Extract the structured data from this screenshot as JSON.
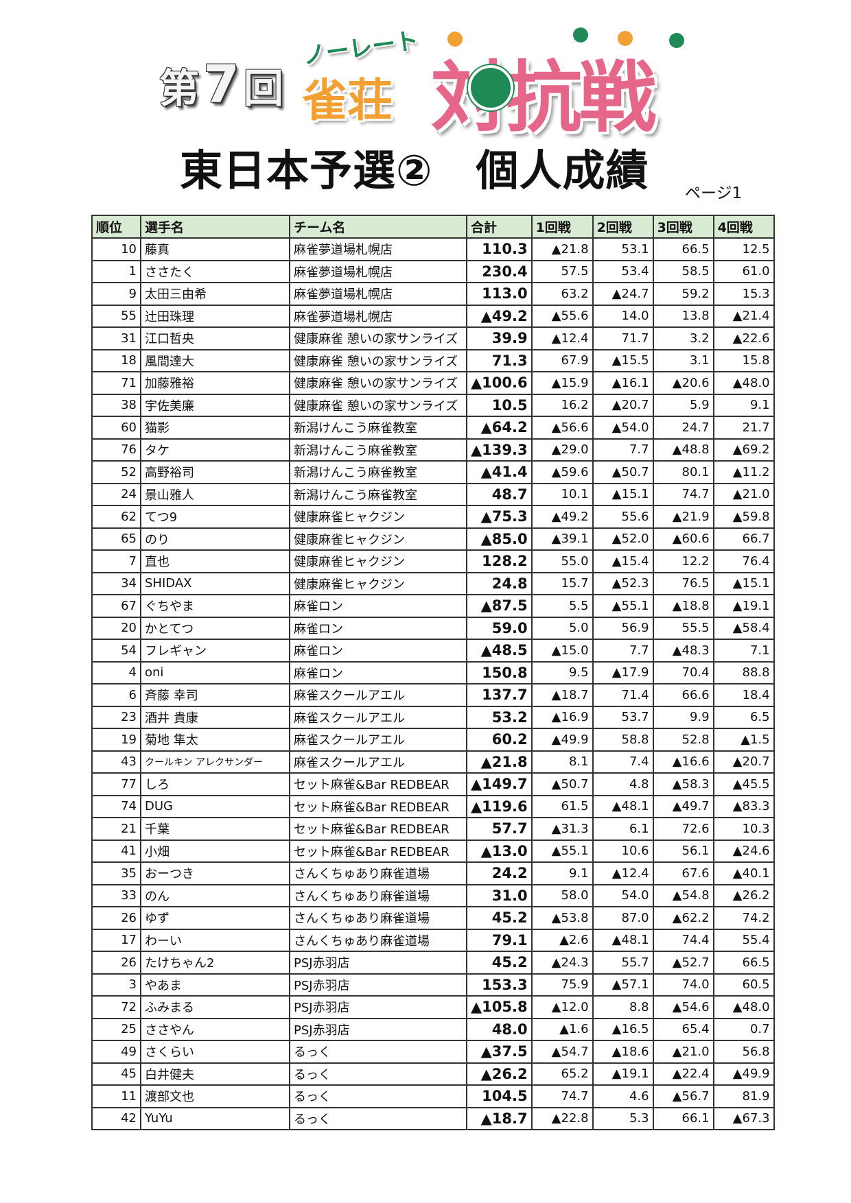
{
  "logo": {
    "edition_prefix": "第",
    "edition_number": "7",
    "edition_suffix": "回",
    "brand_line1": "ノーレート",
    "brand_line2": "雀荘",
    "brand_main": "対抗戦",
    "colors": {
      "green": "#1f8a55",
      "orange": "#f2a033",
      "pink": "#e6668a"
    }
  },
  "title": "東日本予選②　個人成績",
  "page_label": "ページ1",
  "table": {
    "headers": [
      "順位",
      "選手名",
      "チーム名",
      "合計",
      "1回戦",
      "2回戦",
      "3回戦",
      "4回戦"
    ],
    "header_bg": "#d9ead3",
    "rows": [
      [
        "10",
        "藤真",
        "麻雀夢道場札幌店",
        "110.3",
        "▲21.8",
        "53.1",
        "66.5",
        "12.5"
      ],
      [
        "1",
        "ささたく",
        "麻雀夢道場札幌店",
        "230.4",
        "57.5",
        "53.4",
        "58.5",
        "61.0"
      ],
      [
        "9",
        "太田三由希",
        "麻雀夢道場札幌店",
        "113.0",
        "63.2",
        "▲24.7",
        "59.2",
        "15.3"
      ],
      [
        "55",
        "辻田珠理",
        "麻雀夢道場札幌店",
        "▲49.2",
        "▲55.6",
        "14.0",
        "13.8",
        "▲21.4"
      ],
      [
        "31",
        "江口哲央",
        "健康麻雀 憩いの家サンライズ",
        "39.9",
        "▲12.4",
        "71.7",
        "3.2",
        "▲22.6"
      ],
      [
        "18",
        "風間達大",
        "健康麻雀 憩いの家サンライズ",
        "71.3",
        "67.9",
        "▲15.5",
        "3.1",
        "15.8"
      ],
      [
        "71",
        "加藤雅裕",
        "健康麻雀 憩いの家サンライズ",
        "▲100.6",
        "▲15.9",
        "▲16.1",
        "▲20.6",
        "▲48.0"
      ],
      [
        "38",
        "宇佐美廉",
        "健康麻雀 憩いの家サンライズ",
        "10.5",
        "16.2",
        "▲20.7",
        "5.9",
        "9.1"
      ],
      [
        "60",
        "猫影",
        "新潟けんこう麻雀教室",
        "▲64.2",
        "▲56.6",
        "▲54.0",
        "24.7",
        "21.7"
      ],
      [
        "76",
        "タケ",
        "新潟けんこう麻雀教室",
        "▲139.3",
        "▲29.0",
        "7.7",
        "▲48.8",
        "▲69.2"
      ],
      [
        "52",
        "高野裕司",
        "新潟けんこう麻雀教室",
        "▲41.4",
        "▲59.6",
        "▲50.7",
        "80.1",
        "▲11.2"
      ],
      [
        "24",
        "景山雅人",
        "新潟けんこう麻雀教室",
        "48.7",
        "10.1",
        "▲15.1",
        "74.7",
        "▲21.0"
      ],
      [
        "62",
        "てつ9",
        "健康麻雀ヒャクジン",
        "▲75.3",
        "▲49.2",
        "55.6",
        "▲21.9",
        "▲59.8"
      ],
      [
        "65",
        "のり",
        "健康麻雀ヒャクジン",
        "▲85.0",
        "▲39.1",
        "▲52.0",
        "▲60.6",
        "66.7"
      ],
      [
        "7",
        "直也",
        "健康麻雀ヒャクジン",
        "128.2",
        "55.0",
        "▲15.4",
        "12.2",
        "76.4"
      ],
      [
        "34",
        "SHIDAX",
        "健康麻雀ヒャクジン",
        "24.8",
        "15.7",
        "▲52.3",
        "76.5",
        "▲15.1"
      ],
      [
        "67",
        "ぐちやま",
        "麻雀ロン",
        "▲87.5",
        "5.5",
        "▲55.1",
        "▲18.8",
        "▲19.1"
      ],
      [
        "20",
        "かとてつ",
        "麻雀ロン",
        "59.0",
        "5.0",
        "56.9",
        "55.5",
        "▲58.4"
      ],
      [
        "54",
        "フレギャン",
        "麻雀ロン",
        "▲48.5",
        "▲15.0",
        "7.7",
        "▲48.3",
        "7.1"
      ],
      [
        "4",
        "oni",
        "麻雀ロン",
        "150.8",
        "9.5",
        "▲17.9",
        "70.4",
        "88.8"
      ],
      [
        "6",
        "斉藤 幸司",
        "麻雀スクールアエル",
        "137.7",
        "▲18.7",
        "71.4",
        "66.6",
        "18.4"
      ],
      [
        "23",
        "酒井 貴康",
        "麻雀スクールアエル",
        "53.2",
        "▲16.9",
        "53.7",
        "9.9",
        "6.5"
      ],
      [
        "19",
        "菊地 隼太",
        "麻雀スクールアエル",
        "60.2",
        "▲49.9",
        "58.8",
        "52.8",
        "▲1.5"
      ],
      [
        "43",
        "クールキン アレクサンダー",
        "麻雀スクールアエル",
        "▲21.8",
        "8.1",
        "7.4",
        "▲16.6",
        "▲20.7"
      ],
      [
        "77",
        "しろ",
        "セット麻雀&Bar REDBEAR",
        "▲149.7",
        "▲50.7",
        "4.8",
        "▲58.3",
        "▲45.5"
      ],
      [
        "74",
        "DUG",
        "セット麻雀&Bar REDBEAR",
        "▲119.6",
        "61.5",
        "▲48.1",
        "▲49.7",
        "▲83.3"
      ],
      [
        "21",
        "千葉",
        "セット麻雀&Bar REDBEAR",
        "57.7",
        "▲31.3",
        "6.1",
        "72.6",
        "10.3"
      ],
      [
        "41",
        "小畑",
        "セット麻雀&Bar REDBEAR",
        "▲13.0",
        "▲55.1",
        "10.6",
        "56.1",
        "▲24.6"
      ],
      [
        "35",
        "おーつき",
        "さんくちゅあり麻雀道場",
        "24.2",
        "9.1",
        "▲12.4",
        "67.6",
        "▲40.1"
      ],
      [
        "33",
        "のん",
        "さんくちゅあり麻雀道場",
        "31.0",
        "58.0",
        "54.0",
        "▲54.8",
        "▲26.2"
      ],
      [
        "26",
        "ゆず",
        "さんくちゅあり麻雀道場",
        "45.2",
        "▲53.8",
        "87.0",
        "▲62.2",
        "74.2"
      ],
      [
        "17",
        "わーい",
        "さんくちゅあり麻雀道場",
        "79.1",
        "▲2.6",
        "▲48.1",
        "74.4",
        "55.4"
      ],
      [
        "26",
        "たけちゃん2",
        "PSJ赤羽店",
        "45.2",
        "▲24.3",
        "55.7",
        "▲52.7",
        "66.5"
      ],
      [
        "3",
        "やあま",
        "PSJ赤羽店",
        "153.3",
        "75.9",
        "▲57.1",
        "74.0",
        "60.5"
      ],
      [
        "72",
        "ふみまる",
        "PSJ赤羽店",
        "▲105.8",
        "▲12.0",
        "8.8",
        "▲54.6",
        "▲48.0"
      ],
      [
        "25",
        "ささやん",
        "PSJ赤羽店",
        "48.0",
        "▲1.6",
        "▲16.5",
        "65.4",
        "0.7"
      ],
      [
        "49",
        "さくらい",
        "るっく",
        "▲37.5",
        "▲54.7",
        "▲18.6",
        "▲21.0",
        "56.8"
      ],
      [
        "45",
        "白井健夫",
        "るっく",
        "▲26.2",
        "65.2",
        "▲19.1",
        "▲22.4",
        "▲49.9"
      ],
      [
        "11",
        "渡部文也",
        "るっく",
        "104.5",
        "74.7",
        "4.6",
        "▲56.7",
        "81.9"
      ],
      [
        "42",
        "YuYu",
        "るっく",
        "▲18.7",
        "▲22.8",
        "5.3",
        "66.1",
        "▲67.3"
      ]
    ]
  }
}
